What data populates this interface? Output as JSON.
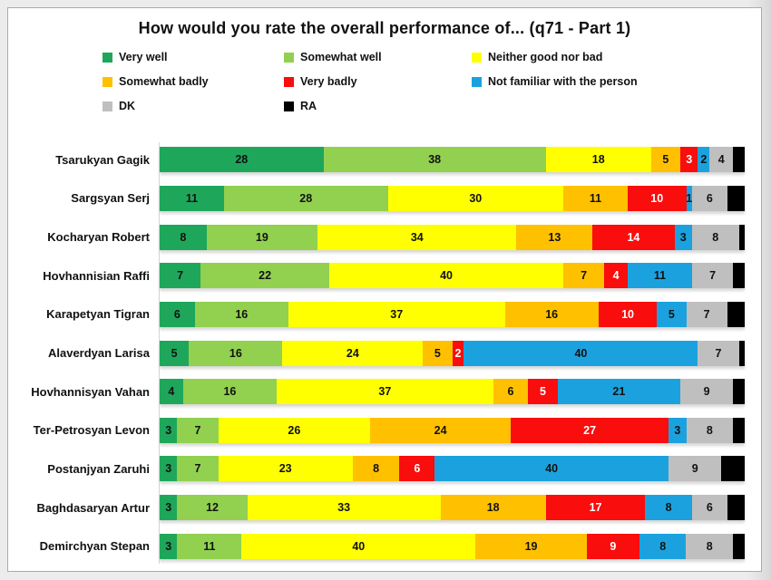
{
  "chart_data": {
    "type": "bar",
    "stacked": true,
    "orientation": "horizontal",
    "title": "How would you rate the overall performance of... (q71 - Part 1)",
    "axis_max": 100,
    "value_format": "percent",
    "legend_position": "top-left",
    "grid": false,
    "categories": [
      "Tsarukyan Gagik",
      "Sargsyan Serj",
      "Kocharyan Robert",
      "Hovhannisian Raffi",
      "Karapetyan Tigran",
      "Alaverdyan Larisa",
      "Hovhannisyan Vahan",
      "Ter-Petrosyan Levon",
      "Postanjyan Zaruhi",
      "Baghdasaryan Artur",
      "Demirchyan Stepan"
    ],
    "series": [
      {
        "name": "Very well",
        "color": "#1EA75B",
        "label_color": "#111111",
        "show_labels": true,
        "values": [
          28,
          11,
          8,
          7,
          6,
          5,
          4,
          3,
          3,
          3,
          3
        ]
      },
      {
        "name": "Somewhat well",
        "color": "#92D050",
        "label_color": "#111111",
        "show_labels": true,
        "values": [
          38,
          28,
          19,
          22,
          16,
          16,
          16,
          7,
          7,
          12,
          11
        ]
      },
      {
        "name": "Neither good nor bad",
        "color": "#FFFF00",
        "label_color": "#111111",
        "show_labels": true,
        "values": [
          18,
          30,
          34,
          40,
          37,
          24,
          37,
          26,
          23,
          33,
          40
        ]
      },
      {
        "name": "Somewhat badly",
        "color": "#FFC000",
        "label_color": "#111111",
        "show_labels": true,
        "values": [
          5,
          11,
          13,
          7,
          16,
          5,
          6,
          24,
          8,
          18,
          19
        ]
      },
      {
        "name": "Very badly",
        "color": "#F90D0D",
        "label_color": "#ffffff",
        "show_labels": true,
        "values": [
          3,
          10,
          14,
          4,
          10,
          2,
          5,
          27,
          6,
          17,
          9
        ]
      },
      {
        "name": "Not familiar with the person",
        "color": "#1BA2DE",
        "label_color": "#111111",
        "show_labels": true,
        "values": [
          2,
          1,
          3,
          11,
          5,
          40,
          21,
          3,
          40,
          8,
          8
        ]
      },
      {
        "name": "DK",
        "color": "#BFBFBF",
        "label_color": "#111111",
        "show_labels": true,
        "values": [
          4,
          6,
          8,
          7,
          7,
          7,
          9,
          8,
          9,
          6,
          8
        ]
      },
      {
        "name": "RA",
        "color": "#000000",
        "label_color": "#ffffff",
        "show_labels": false,
        "values": [
          2,
          3,
          1,
          2,
          3,
          1,
          2,
          2,
          4,
          3,
          2
        ]
      }
    ]
  }
}
